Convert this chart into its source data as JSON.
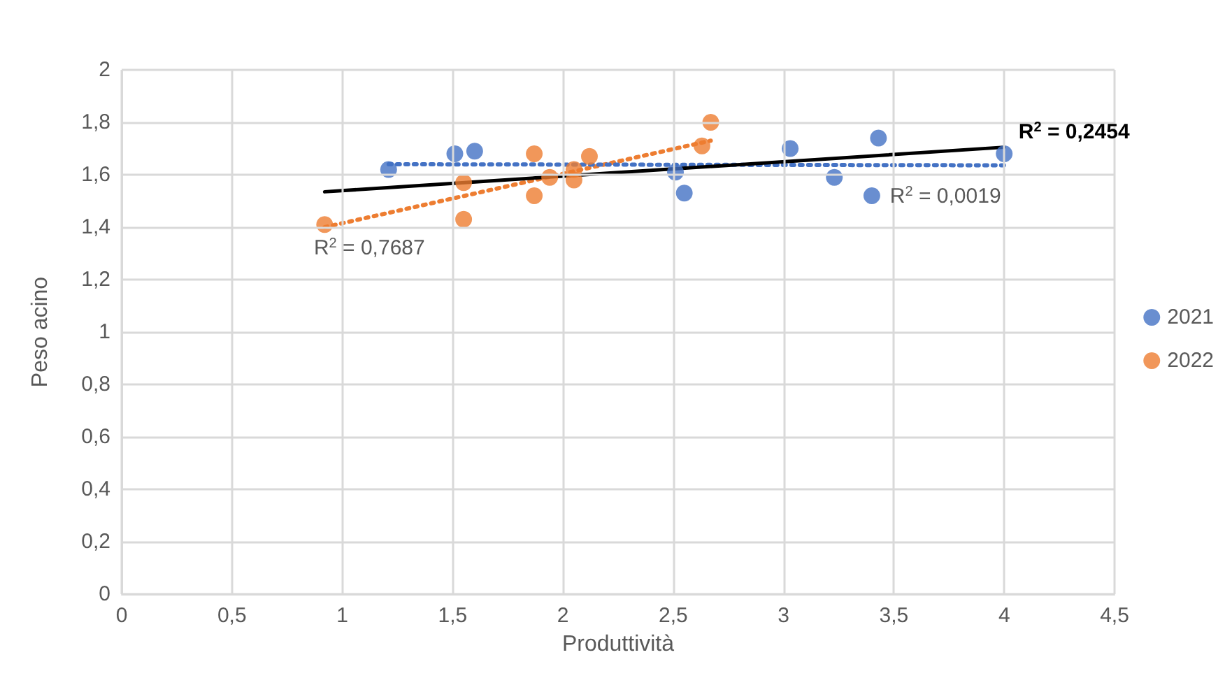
{
  "chart_data": {
    "type": "scatter",
    "xlabel": "Produttività",
    "ylabel": "Peso acino",
    "xlim": [
      0,
      4.5
    ],
    "xticks": [
      0,
      {
        "value": 0.5,
        "label": "0,5"
      },
      1,
      {
        "value": 1.5,
        "label": "1,5"
      },
      2,
      {
        "value": 2.5,
        "label": "2,5"
      },
      3,
      {
        "value": 3.5,
        "label": "3,5"
      },
      4,
      {
        "value": 4.5,
        "label": "4,5"
      }
    ],
    "ylim": [
      0,
      2
    ],
    "yticks": [
      0,
      {
        "value": 0.2,
        "label": "0,2"
      },
      {
        "value": 0.4,
        "label": "0,4"
      },
      {
        "value": 0.6,
        "label": "0,6"
      },
      {
        "value": 0.8,
        "label": "0,8"
      },
      1,
      {
        "value": 1.2,
        "label": "1,2"
      },
      {
        "value": 1.4,
        "label": "1,4"
      },
      {
        "value": 1.6,
        "label": "1,6"
      },
      {
        "value": 1.8,
        "label": "1,8"
      },
      2
    ],
    "grid": true,
    "legend": "right",
    "marker": "circle",
    "series": [
      {
        "name": "2021",
        "color": "#4472c4",
        "x": [
          1.21,
          1.51,
          1.6,
          2.51,
          2.55,
          3.03,
          3.23,
          3.43,
          3.4,
          4.0
        ],
        "values": [
          1.62,
          1.68,
          1.69,
          1.61,
          1.53,
          1.7,
          1.59,
          1.74,
          1.52,
          1.68
        ]
      },
      {
        "name": "2022",
        "color": "#ed7d31",
        "x": [
          0.92,
          1.55,
          1.55,
          1.87,
          1.87,
          1.94,
          2.05,
          2.05,
          2.12,
          2.63,
          2.67
        ],
        "values": [
          1.41,
          1.57,
          1.43,
          1.68,
          1.52,
          1.59,
          1.62,
          1.58,
          1.67,
          1.71,
          1.8
        ]
      },
      {
        "type": "line",
        "color": "#ed7d31",
        "line_style": "dotted",
        "marker": "none",
        "x": [
          0.92,
          2.67
        ],
        "values": [
          1.4,
          1.73
        ]
      },
      {
        "type": "line",
        "color": "#4472c4",
        "line_style": "dotted",
        "marker": "none",
        "x": [
          1.21,
          4.0
        ],
        "values": [
          1.64,
          1.636
        ]
      },
      {
        "type": "line",
        "color": "#000000",
        "line_style": "solid",
        "marker": "none",
        "x": [
          0.92,
          4.0
        ],
        "values": [
          1.535,
          1.705
        ]
      }
    ],
    "annotations": [
      "R$^{2}$ = 0,7687",
      "R$^{2}$ = 0,0019",
      "R$^{2}$ = 0,2454"
    ]
  }
}
